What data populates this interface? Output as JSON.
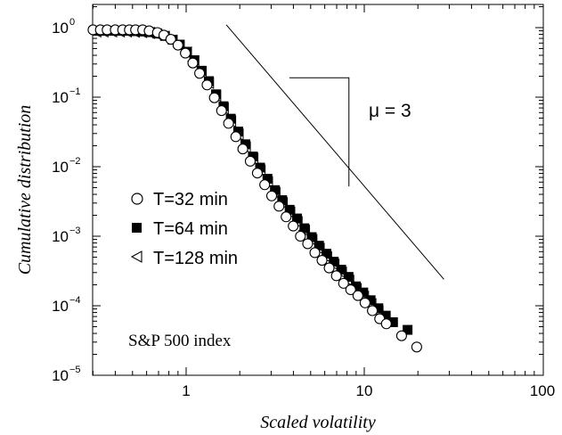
{
  "chart_data": {
    "type": "scatter",
    "xlabel": "Scaled volatility",
    "ylabel": "Cumulative distribution",
    "xscale": "log",
    "yscale": "log",
    "xlim": [
      0.3,
      100
    ],
    "ylim": [
      1e-05,
      1.5
    ],
    "x_ticks": [
      {
        "value": 1,
        "label": "1"
      },
      {
        "value": 10,
        "label": "10"
      },
      {
        "value": 100,
        "label": "100"
      }
    ],
    "y_ticks": [
      {
        "value": 1,
        "base": "10",
        "exp": "0"
      },
      {
        "value": 0.1,
        "base": "10",
        "exp": "−1"
      },
      {
        "value": 0.01,
        "base": "10",
        "exp": "−2"
      },
      {
        "value": 0.001,
        "base": "10",
        "exp": "−3"
      },
      {
        "value": 0.0001,
        "base": "10",
        "exp": "−4"
      },
      {
        "value": 1e-05,
        "base": "10",
        "exp": "−5"
      }
    ],
    "grid": false,
    "legend_position": "left-middle",
    "series": [
      {
        "name": "T=32 min",
        "marker": "open-circle",
        "x": [
          0.3,
          0.33,
          0.36,
          0.4,
          0.44,
          0.48,
          0.52,
          0.57,
          0.62,
          0.69,
          0.75,
          0.82,
          0.9,
          0.99,
          1.09,
          1.19,
          1.31,
          1.44,
          1.58,
          1.73,
          1.9,
          2.08,
          2.29,
          2.51,
          2.76,
          3.02,
          3.32,
          3.64,
          3.99,
          4.38,
          4.81,
          5.28,
          5.79,
          6.35,
          6.97,
          7.65,
          8.39,
          9.21,
          10.1,
          11.1,
          12.2,
          13.3,
          16.2,
          19.7
        ],
        "y": [
          0.93,
          0.93,
          0.93,
          0.93,
          0.93,
          0.93,
          0.93,
          0.93,
          0.9,
          0.85,
          0.78,
          0.68,
          0.56,
          0.43,
          0.31,
          0.22,
          0.15,
          0.098,
          0.064,
          0.042,
          0.027,
          0.018,
          0.012,
          0.0081,
          0.0055,
          0.0038,
          0.0027,
          0.0019,
          0.0014,
          0.001,
          0.00078,
          0.00058,
          0.00045,
          0.00035,
          0.00027,
          0.00021,
          0.00017,
          0.00014,
          0.00011,
          8.5e-05,
          6.5e-05,
          5.5e-05,
          3.7e-05,
          2.55e-05
        ]
      },
      {
        "name": "T=64 min",
        "marker": "filled-square",
        "x": [
          0.32,
          0.35,
          0.39,
          0.43,
          0.47,
          0.52,
          0.57,
          0.63,
          0.69,
          0.76,
          0.84,
          0.92,
          1.01,
          1.11,
          1.22,
          1.34,
          1.47,
          1.62,
          1.78,
          1.96,
          2.15,
          2.37,
          2.6,
          2.86,
          3.15,
          3.46,
          3.81,
          4.19,
          4.61,
          5.07,
          5.57,
          6.13,
          6.74,
          7.42,
          8.16,
          8.97,
          9.87,
          10.86,
          12.0,
          13.2,
          14.5,
          17.5
        ],
        "y": [
          0.9,
          0.9,
          0.9,
          0.9,
          0.9,
          0.89,
          0.88,
          0.86,
          0.82,
          0.76,
          0.67,
          0.57,
          0.45,
          0.34,
          0.24,
          0.17,
          0.11,
          0.074,
          0.049,
          0.032,
          0.021,
          0.014,
          0.0097,
          0.0067,
          0.0046,
          0.0033,
          0.0024,
          0.0018,
          0.0013,
          0.00097,
          0.00073,
          0.00056,
          0.00043,
          0.00033,
          0.00026,
          0.00019,
          0.000155,
          0.00012,
          9.2e-05,
          7.2e-05,
          5.8e-05,
          4.5e-05
        ]
      },
      {
        "name": "T=128 min",
        "marker": "open-left-triangle",
        "x": [
          0.31,
          0.34,
          0.38,
          0.42,
          0.46,
          0.51,
          0.56,
          0.62,
          0.68,
          0.75,
          0.83,
          0.91,
          1.0,
          1.1,
          1.21,
          1.33,
          1.46,
          1.61,
          1.77,
          1.95,
          2.14,
          2.36,
          2.59,
          2.85,
          3.14,
          3.45,
          3.8,
          4.18,
          4.6,
          5.06,
          5.56,
          6.12,
          6.73,
          7.41,
          8.15,
          8.96,
          9.86,
          10.85,
          11.9,
          12.9
        ],
        "y": [
          0.88,
          0.88,
          0.88,
          0.88,
          0.88,
          0.87,
          0.86,
          0.84,
          0.8,
          0.74,
          0.65,
          0.55,
          0.44,
          0.33,
          0.23,
          0.16,
          0.105,
          0.069,
          0.045,
          0.029,
          0.019,
          0.013,
          0.0088,
          0.006,
          0.0042,
          0.003,
          0.0022,
          0.0016,
          0.0012,
          0.00088,
          0.00066,
          0.0005,
          0.00039,
          0.0003,
          0.00023,
          0.000175,
          0.000135,
          0.000105,
          8.2e-05,
          6.5e-05
        ]
      }
    ],
    "reference_line": {
      "slope": -3,
      "x": [
        1.68,
        28.0
      ],
      "y": [
        1.1,
        0.00024
      ]
    },
    "slope_triangle": {
      "x1": 3.8,
      "x2": 8.2,
      "y_top": 0.19,
      "y_bottom": 0.0052
    },
    "annotations": {
      "slope_label": "μ = 3",
      "index_label": "S&P 500 index"
    }
  }
}
